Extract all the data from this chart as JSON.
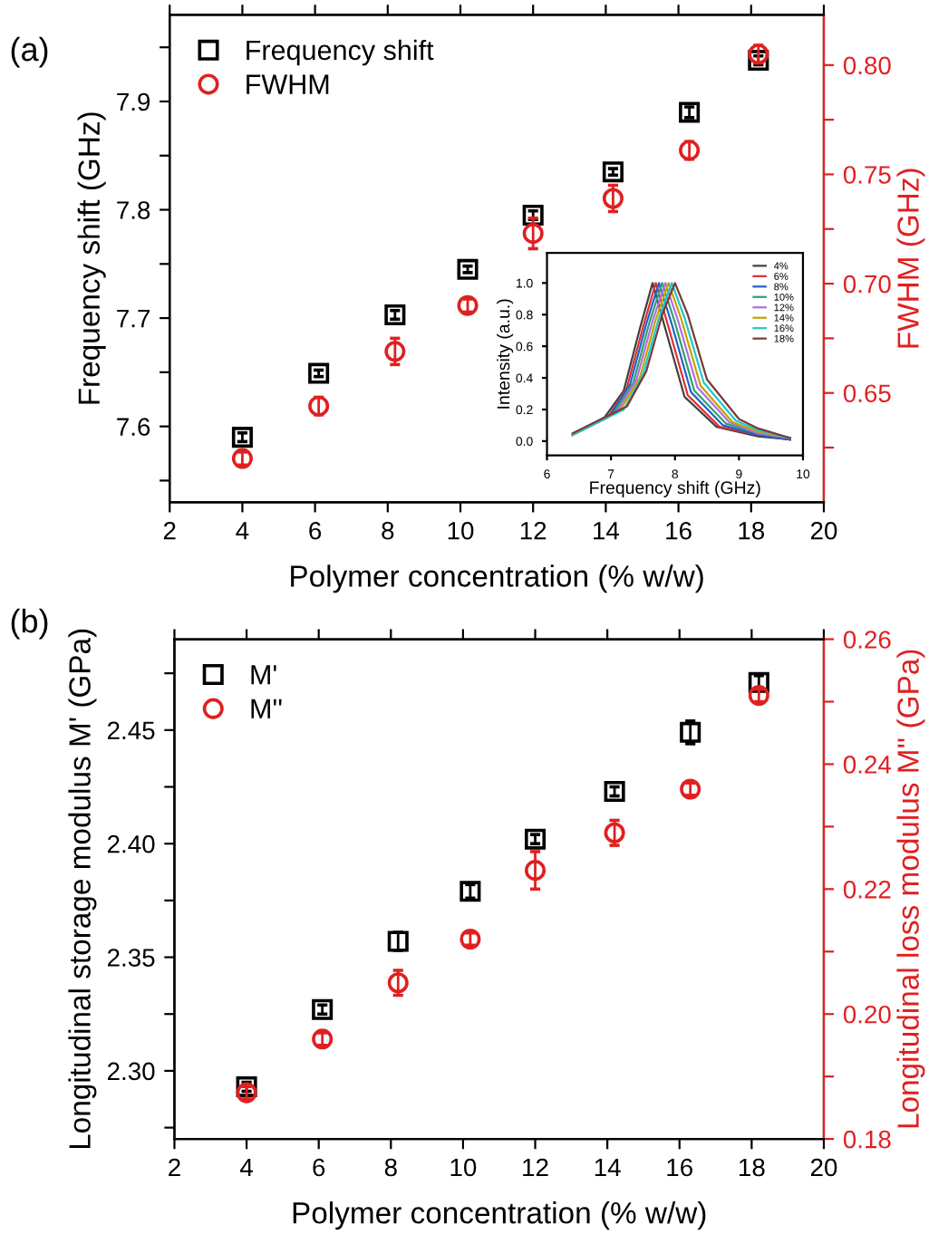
{
  "chart_data": [
    {
      "type": "scatter",
      "annotations": [
        "(a)"
      ],
      "xlabel": "Polymer concentration (% w/w)",
      "ylabel": "Frequency shift (GHz)",
      "y2label": "FWHM (GHz)",
      "xlim": [
        2,
        20
      ],
      "xticks": [
        2,
        4,
        6,
        8,
        10,
        12,
        14,
        16,
        18,
        20
      ],
      "ylim": [
        7.53,
        7.98
      ],
      "yticks": [
        {
          "value": 7.55,
          "label": null
        },
        7.6,
        {
          "value": 7.65,
          "label": null
        },
        7.7,
        {
          "value": 7.75,
          "label": null
        },
        7.8,
        {
          "value": 7.85,
          "label": null
        },
        7.9,
        {
          "value": 7.95,
          "label": null
        }
      ],
      "y2lim": [
        0.6,
        0.823
      ],
      "y2ticks": [
        {
          "value": 0.625,
          "label": null
        },
        {
          "value": 0.65,
          "label": "0.65"
        },
        {
          "value": 0.675,
          "label": null
        },
        {
          "value": 0.7,
          "label": "0.70"
        },
        {
          "value": 0.725,
          "label": null
        },
        {
          "value": 0.75,
          "label": "0.75"
        },
        {
          "value": 0.775,
          "label": null
        },
        {
          "value": 0.8,
          "label": "0.80"
        }
      ],
      "legend": "top left",
      "grid": false,
      "series": [
        {
          "name": "Frequency shift",
          "color": "#000000",
          "marker": "square",
          "x": [
            4,
            6.1,
            8.2,
            10.2,
            12,
            14.2,
            16.3,
            18.2
          ],
          "values": [
            7.59,
            7.649,
            7.703,
            7.745,
            7.795,
            7.835,
            7.89,
            7.938
          ],
          "errors": [
            0.004,
            0.003,
            0.004,
            0.003,
            0.004,
            0.003,
            0.005,
            0.004
          ]
        },
        {
          "name": "FWHM",
          "color": "#e02020",
          "marker": "circle",
          "axis": "y2",
          "x": [
            4,
            6.1,
            8.2,
            10.2,
            12,
            14.2,
            16.3,
            18.2
          ],
          "values": [
            0.62,
            0.644,
            0.669,
            0.69,
            0.723,
            0.739,
            0.761,
            0.805
          ],
          "errors": [
            0.003,
            0.004,
            0.006,
            0.003,
            0.007,
            0.006,
            0.004,
            0.004
          ]
        }
      ]
    },
    {
      "type": "line",
      "xlabel": "Frequency shift (GHz)",
      "ylabel": "Intensity (a.u.)",
      "xlim": [
        6,
        10
      ],
      "xticks": [
        6,
        7,
        8,
        9,
        10
      ],
      "ylim": [
        -0.09,
        1.19
      ],
      "yticks": [
        {
          "value": 0,
          "label": "0.0"
        },
        {
          "value": 0.2,
          "label": "0.2"
        },
        {
          "value": 0.4,
          "label": "0.4"
        },
        {
          "value": 0.6,
          "label": "0.6"
        },
        {
          "value": 0.8,
          "label": "0.8"
        },
        {
          "value": 1,
          "label": "1.0"
        }
      ],
      "legend": "top right",
      "grid": false,
      "series": [
        {
          "name": "4%",
          "color": "#404040",
          "x": [
            6.4,
            6.9,
            7.2,
            7.45,
            7.65,
            7.85,
            8.15,
            8.65,
            9.3,
            9.8
          ],
          "values": [
            0.04,
            0.15,
            0.32,
            0.71,
            1.0,
            0.71,
            0.28,
            0.09,
            0.03,
            0.01
          ]
        },
        {
          "name": "6%",
          "color": "#e03030",
          "x": [
            6.4,
            6.95,
            7.25,
            7.5,
            7.7,
            7.9,
            8.2,
            8.7,
            9.3,
            9.8
          ],
          "values": [
            0.04,
            0.15,
            0.34,
            0.72,
            1.0,
            0.72,
            0.29,
            0.09,
            0.04,
            0.01
          ]
        },
        {
          "name": "8%",
          "color": "#2060d0",
          "x": [
            6.4,
            7.0,
            7.3,
            7.55,
            7.75,
            7.95,
            8.25,
            8.75,
            9.3,
            9.8
          ],
          "values": [
            0.04,
            0.17,
            0.36,
            0.74,
            1.0,
            0.74,
            0.31,
            0.1,
            0.04,
            0.01
          ]
        },
        {
          "name": "10%",
          "color": "#30a070",
          "x": [
            6.4,
            7.05,
            7.35,
            7.6,
            7.8,
            8.0,
            8.3,
            8.8,
            9.3,
            9.8
          ],
          "values": [
            0.04,
            0.18,
            0.37,
            0.75,
            1.0,
            0.75,
            0.32,
            0.11,
            0.05,
            0.02
          ]
        },
        {
          "name": "12%",
          "color": "#b070e0",
          "x": [
            6.4,
            7.1,
            7.4,
            7.65,
            7.85,
            8.05,
            8.35,
            8.85,
            9.3,
            9.8
          ],
          "values": [
            0.04,
            0.19,
            0.39,
            0.76,
            1.0,
            0.76,
            0.34,
            0.12,
            0.05,
            0.02
          ]
        },
        {
          "name": "14%",
          "color": "#c8a000",
          "x": [
            6.4,
            7.15,
            7.45,
            7.7,
            7.9,
            8.1,
            8.4,
            8.9,
            9.3,
            9.8
          ],
          "values": [
            0.04,
            0.2,
            0.4,
            0.77,
            1.0,
            0.77,
            0.35,
            0.12,
            0.06,
            0.02
          ]
        },
        {
          "name": "16%",
          "color": "#20c8c8",
          "x": [
            6.4,
            7.2,
            7.5,
            7.75,
            7.95,
            8.15,
            8.45,
            8.95,
            9.3,
            9.8
          ],
          "values": [
            0.04,
            0.2,
            0.42,
            0.78,
            1.0,
            0.78,
            0.37,
            0.13,
            0.07,
            0.02
          ]
        },
        {
          "name": "18%",
          "color": "#7a3a3a",
          "x": [
            6.4,
            7.25,
            7.55,
            7.8,
            8.0,
            8.2,
            8.5,
            9.0,
            9.3,
            9.8
          ],
          "values": [
            0.05,
            0.22,
            0.44,
            0.8,
            1.0,
            0.8,
            0.39,
            0.14,
            0.08,
            0.02
          ]
        }
      ]
    },
    {
      "type": "scatter",
      "annotations": [
        "(b)"
      ],
      "xlabel": "Polymer concentration (% w/w)",
      "ylabel": "Longitudinal storage modulus M' (GPa)",
      "y2label": "Longitudinal loss modulus M'' (GPa)",
      "xlim": [
        2,
        20
      ],
      "xticks": [
        2,
        4,
        6,
        8,
        10,
        12,
        14,
        16,
        18,
        20
      ],
      "ylim": [
        2.27,
        2.49
      ],
      "yticks": [
        {
          "value": 2.275,
          "label": null
        },
        {
          "value": 2.3,
          "label": "2.30"
        },
        {
          "value": 2.325,
          "label": null
        },
        {
          "value": 2.35,
          "label": "2.35"
        },
        {
          "value": 2.375,
          "label": null
        },
        {
          "value": 2.4,
          "label": "2.40"
        },
        {
          "value": 2.425,
          "label": null
        },
        {
          "value": 2.45,
          "label": "2.45"
        },
        {
          "value": 2.475,
          "label": null
        }
      ],
      "y2lim": [
        0.18,
        0.26
      ],
      "y2ticks": [
        {
          "value": 0.18,
          "label": "0.18"
        },
        {
          "value": 0.19,
          "label": null
        },
        {
          "value": 0.2,
          "label": "0.20"
        },
        {
          "value": 0.21,
          "label": null
        },
        {
          "value": 0.22,
          "label": "0.22"
        },
        {
          "value": 0.23,
          "label": null
        },
        {
          "value": 0.24,
          "label": "0.24"
        },
        {
          "value": 0.25,
          "label": null
        },
        {
          "value": 0.26,
          "label": "0.26"
        }
      ],
      "legend": "top left",
      "grid": false,
      "series": [
        {
          "name": "M'",
          "color": "#000000",
          "marker": "square",
          "x": [
            4,
            6.1,
            8.2,
            10.2,
            12,
            14.2,
            16.3,
            18.2
          ],
          "values": [
            2.293,
            2.327,
            2.357,
            2.379,
            2.402,
            2.423,
            2.449,
            2.471
          ],
          "errors": [
            0.002,
            0.002,
            0.004,
            0.003,
            0.002,
            0.002,
            0.005,
            0.003
          ]
        },
        {
          "name": "M''",
          "color": "#e02020",
          "marker": "circle",
          "axis": "y2",
          "x": [
            4,
            6.1,
            8.2,
            10.2,
            12,
            14.2,
            16.3,
            18.2
          ],
          "values": [
            0.1874,
            0.196,
            0.205,
            0.212,
            0.223,
            0.229,
            0.236,
            0.251
          ],
          "errors": [
            0.001,
            0.001,
            0.002,
            0.001,
            0.003,
            0.002,
            0.001,
            0.001
          ]
        }
      ]
    }
  ]
}
